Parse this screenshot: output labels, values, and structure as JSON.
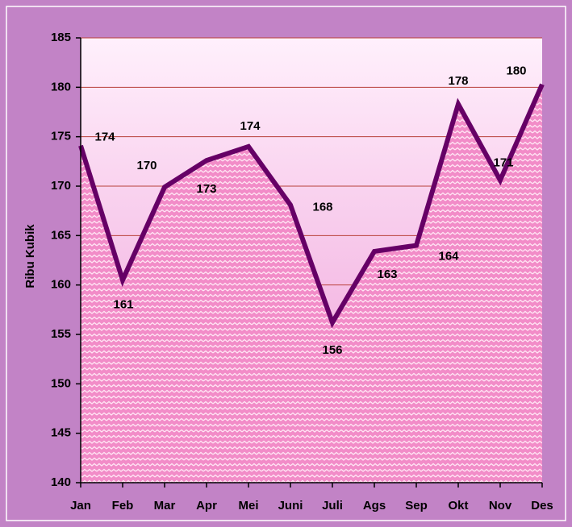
{
  "chart_data": {
    "type": "area",
    "y_label": "Ribu Kubik",
    "categories": [
      "Jan",
      "Feb",
      "Mar",
      "Apr",
      "Mei",
      "Juni",
      "Juli",
      "Ags",
      "Sep",
      "Okt",
      "Nov",
      "Des"
    ],
    "values": [
      174.1,
      160.5,
      169.9,
      172.6,
      174.0,
      168.1,
      156.2,
      163.4,
      164.0,
      178.3,
      170.6,
      180.3
    ],
    "value_labels": [
      "174",
      "161",
      "170",
      "173",
      "174",
      "168",
      "156",
      "163",
      "164",
      "178",
      "171",
      "180"
    ],
    "color": "#660066",
    "ylim": [
      140,
      185
    ],
    "yticks": [
      140,
      145,
      150,
      155,
      160,
      165,
      170,
      175,
      180,
      185
    ],
    "grid": true
  }
}
